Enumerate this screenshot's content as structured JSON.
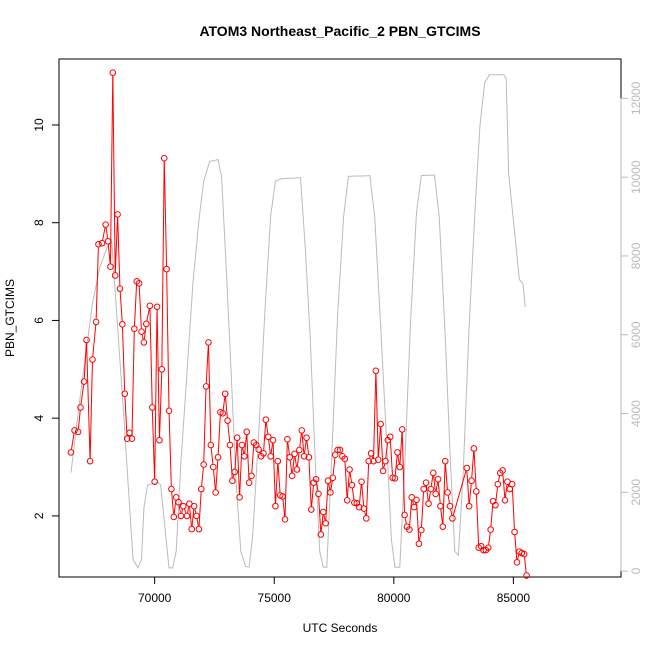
{
  "chart_data": {
    "type": "line",
    "title": "ATOM3 Northeast_Pacific_2 PBN_GTCIMS",
    "xlabel": "UTC Seconds",
    "ylabel": "PBN_GTCIMS",
    "xlim": [
      66000,
      89500
    ],
    "ylim": [
      0.75,
      11.35
    ],
    "y2lim": [
      -150,
      13000
    ],
    "x_ticks": [
      70000,
      75000,
      80000,
      85000
    ],
    "y_ticks": [
      2,
      4,
      6,
      8,
      10
    ],
    "y2_ticks": [
      0,
      2000,
      4000,
      6000,
      8000,
      10000,
      12000
    ],
    "colors": {
      "series": "#ff0000",
      "altitude": "#bbbbbb"
    },
    "series": [
      {
        "values": [
          [
            66500,
            3.3
          ],
          [
            66650,
            3.75
          ],
          [
            66800,
            3.72
          ],
          [
            66900,
            4.22
          ],
          [
            67050,
            4.75
          ],
          [
            67150,
            5.6
          ],
          [
            67300,
            3.12
          ],
          [
            67400,
            5.2
          ],
          [
            67550,
            5.97
          ],
          [
            67650,
            7.56
          ],
          [
            67800,
            7.58
          ],
          [
            67950,
            7.96
          ],
          [
            68050,
            7.62
          ],
          [
            68150,
            7.1
          ],
          [
            68250,
            11.07
          ],
          [
            68350,
            6.92
          ],
          [
            68450,
            8.17
          ],
          [
            68550,
            6.65
          ],
          [
            68650,
            5.92
          ],
          [
            68750,
            4.5
          ],
          [
            68850,
            3.58
          ],
          [
            68950,
            3.7
          ],
          [
            69050,
            3.58
          ],
          [
            69150,
            5.83
          ],
          [
            69250,
            6.8
          ],
          [
            69350,
            6.76
          ],
          [
            69450,
            5.77
          ],
          [
            69550,
            5.55
          ],
          [
            69650,
            5.93
          ],
          [
            69800,
            6.3
          ],
          [
            69900,
            4.22
          ],
          [
            70000,
            2.7
          ],
          [
            70100,
            6.28
          ],
          [
            70200,
            3.55
          ],
          [
            70300,
            5.0
          ],
          [
            70400,
            9.32
          ],
          [
            70500,
            7.05
          ],
          [
            70600,
            4.15
          ],
          [
            70700,
            2.55
          ],
          [
            70800,
            1.98
          ],
          [
            70900,
            2.38
          ],
          [
            71000,
            2.28
          ],
          [
            71100,
            2.0
          ],
          [
            71200,
            2.2
          ],
          [
            71350,
            2.0
          ],
          [
            71450,
            2.25
          ],
          [
            71550,
            1.73
          ],
          [
            71650,
            2.2
          ],
          [
            71750,
            2.0
          ],
          [
            71850,
            1.73
          ],
          [
            71950,
            2.55
          ],
          [
            72050,
            3.05
          ],
          [
            72150,
            4.65
          ],
          [
            72250,
            5.55
          ],
          [
            72350,
            3.45
          ],
          [
            72450,
            3.0
          ],
          [
            72550,
            2.48
          ],
          [
            72650,
            3.2
          ],
          [
            72750,
            4.12
          ],
          [
            72850,
            4.1
          ],
          [
            72950,
            4.5
          ],
          [
            73050,
            3.95
          ],
          [
            73150,
            3.45
          ],
          [
            73250,
            2.72
          ],
          [
            73350,
            2.9
          ],
          [
            73450,
            3.6
          ],
          [
            73550,
            2.38
          ],
          [
            73650,
            3.45
          ],
          [
            73750,
            3.22
          ],
          [
            73850,
            3.72
          ],
          [
            73950,
            2.68
          ],
          [
            74050,
            2.82
          ],
          [
            74150,
            3.5
          ],
          [
            74250,
            3.45
          ],
          [
            74350,
            3.36
          ],
          [
            74450,
            3.22
          ],
          [
            74550,
            3.28
          ],
          [
            74650,
            3.97
          ],
          [
            74750,
            3.62
          ],
          [
            74850,
            3.22
          ],
          [
            74950,
            3.55
          ],
          [
            75050,
            2.2
          ],
          [
            75150,
            3.12
          ],
          [
            75250,
            2.42
          ],
          [
            75350,
            2.4
          ],
          [
            75450,
            1.93
          ],
          [
            75550,
            3.57
          ],
          [
            75650,
            3.2
          ],
          [
            75750,
            2.82
          ],
          [
            75850,
            3.27
          ],
          [
            75950,
            2.95
          ],
          [
            76050,
            3.35
          ],
          [
            76150,
            3.75
          ],
          [
            76250,
            3.22
          ],
          [
            76350,
            3.6
          ],
          [
            76450,
            3.2
          ],
          [
            76550,
            2.13
          ],
          [
            76650,
            2.68
          ],
          [
            76750,
            2.75
          ],
          [
            76850,
            2.45
          ],
          [
            76950,
            1.62
          ],
          [
            77050,
            2.08
          ],
          [
            77150,
            1.85
          ],
          [
            77250,
            2.72
          ],
          [
            77350,
            2.48
          ],
          [
            77450,
            2.78
          ],
          [
            77550,
            3.25
          ],
          [
            77650,
            3.35
          ],
          [
            77750,
            3.35
          ],
          [
            77850,
            3.22
          ],
          [
            77950,
            3.17
          ],
          [
            78050,
            2.32
          ],
          [
            78150,
            2.95
          ],
          [
            78250,
            2.63
          ],
          [
            78350,
            2.27
          ],
          [
            78450,
            2.26
          ],
          [
            78550,
            2.18
          ],
          [
            78650,
            2.7
          ],
          [
            78750,
            2.15
          ],
          [
            78850,
            1.95
          ],
          [
            78950,
            3.12
          ],
          [
            79050,
            3.28
          ],
          [
            79150,
            3.12
          ],
          [
            79250,
            4.97
          ],
          [
            79350,
            3.15
          ],
          [
            79450,
            3.88
          ],
          [
            79550,
            2.92
          ],
          [
            79650,
            3.12
          ],
          [
            79750,
            3.55
          ],
          [
            79850,
            3.62
          ],
          [
            79950,
            2.78
          ],
          [
            80050,
            2.77
          ],
          [
            80150,
            3.3
          ],
          [
            80250,
            3.0
          ],
          [
            80350,
            3.77
          ],
          [
            80450,
            2.02
          ],
          [
            80550,
            1.78
          ],
          [
            80650,
            1.72
          ],
          [
            80750,
            2.38
          ],
          [
            80850,
            2.18
          ],
          [
            80950,
            2.33
          ],
          [
            81050,
            1.43
          ],
          [
            81150,
            1.71
          ],
          [
            81250,
            2.55
          ],
          [
            81350,
            2.68
          ],
          [
            81450,
            2.25
          ],
          [
            81550,
            2.55
          ],
          [
            81650,
            2.88
          ],
          [
            81750,
            2.45
          ],
          [
            81850,
            2.75
          ],
          [
            81950,
            2.2
          ],
          [
            82050,
            1.78
          ],
          [
            82150,
            3.12
          ],
          [
            82250,
            2.48
          ],
          [
            82350,
            2.2
          ],
          [
            82450,
            1.95
          ],
          [
            83050,
            2.98
          ],
          [
            83150,
            2.2
          ],
          [
            83250,
            2.72
          ],
          [
            83350,
            3.38
          ],
          [
            83450,
            2.5
          ],
          [
            83550,
            1.35
          ],
          [
            83650,
            1.38
          ],
          [
            83750,
            1.3
          ],
          [
            83850,
            1.3
          ],
          [
            83950,
            1.35
          ],
          [
            84050,
            1.72
          ],
          [
            84150,
            2.3
          ],
          [
            84250,
            2.22
          ],
          [
            84350,
            2.65
          ],
          [
            84450,
            2.88
          ],
          [
            84550,
            2.93
          ],
          [
            84650,
            2.32
          ],
          [
            84750,
            2.7
          ],
          [
            84850,
            2.55
          ],
          [
            84950,
            2.65
          ],
          [
            85050,
            1.67
          ],
          [
            85150,
            1.05
          ],
          [
            85250,
            1.27
          ],
          [
            85350,
            1.24
          ],
          [
            85450,
            1.22
          ],
          [
            85550,
            0.78
          ]
        ]
      },
      {
        "axis": "right",
        "values": [
          [
            66500,
            2500
          ],
          [
            66800,
            4000
          ],
          [
            67050,
            5200
          ],
          [
            67400,
            6800
          ],
          [
            67700,
            7700
          ],
          [
            68000,
            8200
          ],
          [
            68200,
            8400
          ],
          [
            68450,
            6200
          ],
          [
            68700,
            4000
          ],
          [
            68900,
            2100
          ],
          [
            69100,
            300
          ],
          [
            69300,
            80
          ],
          [
            69450,
            300
          ],
          [
            69550,
            1600
          ],
          [
            69700,
            2180
          ],
          [
            70000,
            2230
          ],
          [
            70150,
            2250
          ],
          [
            70250,
            2180
          ],
          [
            70400,
            1300
          ],
          [
            70600,
            80
          ],
          [
            70750,
            80
          ],
          [
            70900,
            500
          ],
          [
            71100,
            2800
          ],
          [
            71350,
            5000
          ],
          [
            71600,
            7300
          ],
          [
            71850,
            8900
          ],
          [
            72050,
            9900
          ],
          [
            72300,
            10400
          ],
          [
            72500,
            10420
          ],
          [
            72650,
            10450
          ],
          [
            72800,
            10000
          ],
          [
            73000,
            7600
          ],
          [
            73200,
            5000
          ],
          [
            73400,
            2300
          ],
          [
            73600,
            500
          ],
          [
            73800,
            120
          ],
          [
            73950,
            100
          ],
          [
            74100,
            900
          ],
          [
            74350,
            3500
          ],
          [
            74600,
            6500
          ],
          [
            74850,
            9000
          ],
          [
            75050,
            9900
          ],
          [
            75300,
            9960
          ],
          [
            75600,
            9970
          ],
          [
            75900,
            9980
          ],
          [
            76100,
            9990
          ],
          [
            76300,
            8200
          ],
          [
            76500,
            6000
          ],
          [
            76700,
            3000
          ],
          [
            76900,
            500
          ],
          [
            77050,
            100
          ],
          [
            77200,
            100
          ],
          [
            77400,
            2800
          ],
          [
            77650,
            6500
          ],
          [
            77900,
            9000
          ],
          [
            78100,
            10020
          ],
          [
            78400,
            10030
          ],
          [
            78700,
            10030
          ],
          [
            79000,
            10040
          ],
          [
            79200,
            9000
          ],
          [
            79450,
            6200
          ],
          [
            79700,
            3300
          ],
          [
            79900,
            800
          ],
          [
            80050,
            100
          ],
          [
            80250,
            100
          ],
          [
            80450,
            2600
          ],
          [
            80700,
            6300
          ],
          [
            80950,
            9100
          ],
          [
            81150,
            10040
          ],
          [
            81450,
            10050
          ],
          [
            81700,
            10050
          ],
          [
            81900,
            9000
          ],
          [
            82150,
            6000
          ],
          [
            82350,
            3000
          ],
          [
            82550,
            500
          ],
          [
            82700,
            400
          ],
          [
            82900,
            2500
          ],
          [
            83150,
            6200
          ],
          [
            83400,
            9200
          ],
          [
            83600,
            11300
          ],
          [
            83800,
            12400
          ],
          [
            84000,
            12600
          ],
          [
            84300,
            12600
          ],
          [
            84600,
            12600
          ],
          [
            84700,
            12500
          ],
          [
            84800,
            10100
          ],
          [
            84950,
            9200
          ],
          [
            85050,
            8600
          ],
          [
            85250,
            7400
          ],
          [
            85400,
            7300
          ],
          [
            85500,
            6700
          ]
        ]
      }
    ]
  }
}
